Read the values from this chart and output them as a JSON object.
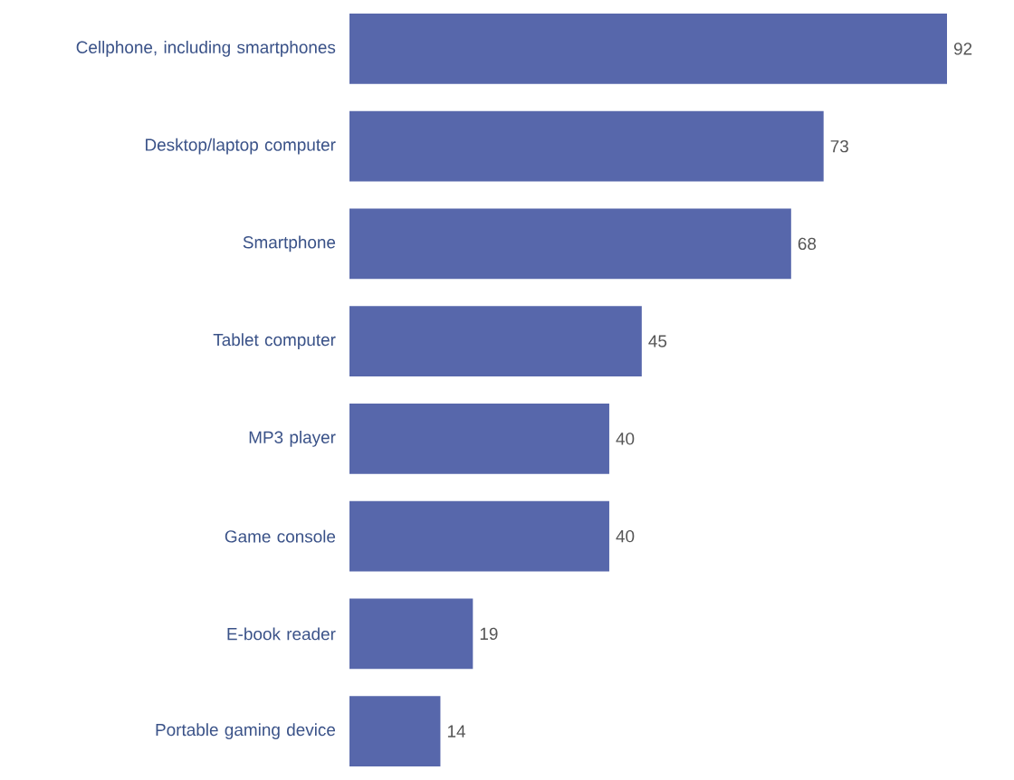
{
  "chart_data": {
    "type": "bar",
    "orientation": "horizontal",
    "categories": [
      "Cellphone, including smartphones",
      "Desktop/laptop computer",
      "Smartphone",
      "Tablet computer",
      "MP3 player",
      "Game console",
      "E-book reader",
      "Portable gaming device"
    ],
    "values": [
      92,
      73,
      68,
      45,
      40,
      40,
      19,
      14
    ],
    "color": "#5767ab",
    "data_labels": true
  }
}
